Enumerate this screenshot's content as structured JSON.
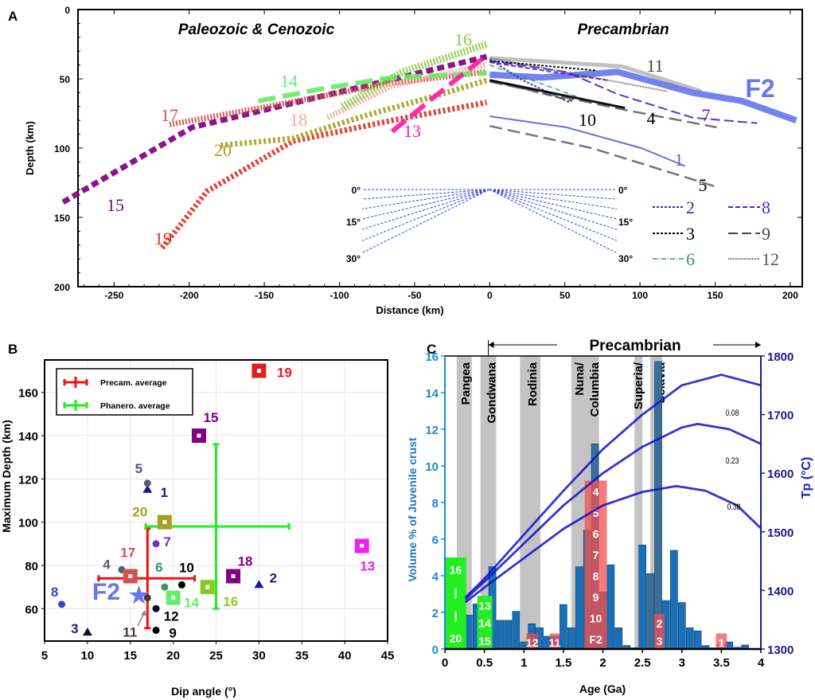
{
  "chart_data": [
    {
      "panel": "A",
      "type": "line",
      "xlabel": "Distance (km)",
      "ylabel": "Depth (km)",
      "xlim": [
        -274,
        208
      ],
      "ylim": [
        200,
        0
      ],
      "xticks": [
        -250,
        -200,
        -150,
        -100,
        -50,
        0,
        50,
        100,
        150,
        200
      ],
      "yticks": [
        0,
        50,
        100,
        150,
        200
      ],
      "region_labels": {
        "left": "Paleozoic & Cenozoic",
        "right": "Precambrian"
      },
      "angle_labels": [
        "0°",
        "15°",
        "30°"
      ],
      "series": [
        {
          "name": "15",
          "color": "#800080",
          "style": "thick-dashed",
          "points": [
            [
              -284,
              139
            ],
            [
              -198,
              85
            ],
            [
              -98,
              59
            ],
            [
              -2,
              34
            ]
          ]
        },
        {
          "name": "19",
          "color": "#e03020",
          "style": "thick-dotted",
          "points": [
            [
              -218,
              172
            ],
            [
              -188,
              131
            ],
            [
              -131,
              95
            ],
            [
              -65,
              80
            ],
            [
              -2,
              67
            ]
          ]
        },
        {
          "name": "20",
          "color": "#a8a020",
          "style": "thick-dotted",
          "points": [
            [
              -179,
              98
            ],
            [
              -131,
              93
            ],
            [
              -81,
              76
            ],
            [
              -32,
              61
            ],
            [
              -2,
              51
            ]
          ]
        },
        {
          "name": "17",
          "color": "#d05050",
          "style": "hatched",
          "points": [
            [
              -213,
              83
            ],
            [
              -148,
              70
            ],
            [
              -65,
              53
            ],
            [
              -2,
              45
            ]
          ]
        },
        {
          "name": "18",
          "color": "#f4a898",
          "style": "hatched",
          "points": [
            [
              -108,
              78
            ],
            [
              -65,
              55
            ],
            [
              -2,
              40
            ]
          ]
        },
        {
          "name": "16",
          "color": "#8acb4a",
          "style": "hatched-wide",
          "points": [
            [
              -98,
              70
            ],
            [
              -58,
              45
            ],
            [
              -2,
              25
            ]
          ]
        },
        {
          "name": "14",
          "color": "#66ee66",
          "style": "long-dashed",
          "points": [
            [
              -154,
              66
            ],
            [
              -111,
              57
            ],
            [
              -65,
              49
            ],
            [
              -2,
              46
            ]
          ]
        },
        {
          "name": "13",
          "color": "#ff1aa8",
          "style": "long-dashed",
          "points": [
            [
              -65,
              88
            ],
            [
              -38,
              64
            ],
            [
              -2,
              33
            ]
          ]
        },
        {
          "name": "11",
          "color": "#bbbbbb",
          "style": "solid-thick",
          "points": [
            [
              0,
              35
            ],
            [
              88,
              41
            ],
            [
              141,
              59
            ]
          ]
        },
        {
          "name": "F2",
          "color": "#6677ee",
          "style": "solid-heavy",
          "points": [
            [
              0,
              47
            ],
            [
              35,
              49
            ],
            [
              85,
              45
            ],
            [
              135,
              60
            ],
            [
              168,
              66
            ],
            [
              204,
              80
            ]
          ]
        },
        {
          "name": "7",
          "color": "#5522cc",
          "style": "dashed",
          "points": [
            [
              0,
              37
            ],
            [
              51,
              45
            ],
            [
              85,
              61
            ],
            [
              135,
              78
            ],
            [
              178,
              82
            ]
          ]
        },
        {
          "name": "8",
          "color": "#5522cc",
          "style": "short-dashed",
          "points": [
            [
              0,
              38
            ],
            [
              78,
              51
            ]
          ]
        },
        {
          "name": "12",
          "color": "#555555",
          "style": "fine-dotted",
          "points": [
            [
              0,
              35
            ],
            [
              118,
              59
            ]
          ]
        },
        {
          "name": "3",
          "color": "#000000",
          "style": "dotted",
          "points": [
            [
              0,
              37
            ],
            [
              71,
              44
            ]
          ]
        },
        {
          "name": "2",
          "color": "#333399",
          "style": "dotted",
          "points": [
            [
              0,
              36
            ],
            [
              22,
              51
            ],
            [
              53,
              67
            ]
          ]
        },
        {
          "name": "6",
          "color": "#339966",
          "style": "dash-dot",
          "points": [
            [
              0,
              40
            ],
            [
              61,
              64
            ]
          ]
        },
        {
          "name": "9",
          "color": "#444455",
          "style": "dashed",
          "points": [
            [
              0,
              51
            ],
            [
              55,
              66
            ]
          ]
        },
        {
          "name": "4",
          "color": "#666677",
          "style": "long-dashed-thin",
          "points": [
            [
              0,
              52
            ],
            [
              88,
              72
            ],
            [
              151,
              85
            ]
          ]
        },
        {
          "name": "10",
          "color": "#000000",
          "style": "solid",
          "points": [
            [
              0,
              51
            ],
            [
              90,
              71
            ]
          ]
        },
        {
          "name": "1",
          "color": "#5566dd",
          "style": "solid-thin",
          "points": [
            [
              0,
              77
            ],
            [
              51,
              85
            ],
            [
              101,
              100
            ],
            [
              130,
              113
            ]
          ]
        },
        {
          "name": "5",
          "color": "#666677",
          "style": "long-dashed-thin",
          "points": [
            [
              0,
              84
            ],
            [
              68,
              100
            ],
            [
              151,
              128
            ]
          ]
        }
      ],
      "legend": [
        "2",
        "8",
        "3",
        "9",
        "6",
        "12"
      ]
    },
    {
      "panel": "B",
      "type": "scatter",
      "xlabel": "Dip angle (°)",
      "ylabel": "Maximum Depth (km)",
      "xlim": [
        5,
        45
      ],
      "ylim": [
        45,
        175
      ],
      "xticks": [
        5,
        10,
        15,
        20,
        25,
        30,
        35,
        40,
        45
      ],
      "yticks": [
        60,
        80,
        100,
        120,
        140,
        160
      ],
      "grid": true,
      "legend_position": "top-left",
      "points": [
        {
          "name": "1",
          "dip": 17,
          "depth": 115,
          "marker": "triangle",
          "color": "#1a1a8c"
        },
        {
          "name": "2",
          "dip": 30,
          "depth": 71,
          "marker": "triangle",
          "color": "#1a1a8c"
        },
        {
          "name": "3",
          "dip": 10,
          "depth": 49,
          "marker": "triangle",
          "color": "#111133"
        },
        {
          "name": "4",
          "dip": 14,
          "depth": 78,
          "marker": "circle",
          "color": "#5a5a7a"
        },
        {
          "name": "5",
          "dip": 17,
          "depth": 118,
          "marker": "circle",
          "color": "#5a5a7a"
        },
        {
          "name": "6",
          "dip": 19,
          "depth": 70,
          "marker": "circle",
          "color": "#339966"
        },
        {
          "name": "7",
          "dip": 18,
          "depth": 90,
          "marker": "circle",
          "color": "#6633cc"
        },
        {
          "name": "8",
          "dip": 7,
          "depth": 62,
          "marker": "circle",
          "color": "#3344cc"
        },
        {
          "name": "9",
          "dip": 18,
          "depth": 50,
          "marker": "circle",
          "color": "#000000"
        },
        {
          "name": "10",
          "dip": 21,
          "depth": 71,
          "marker": "circle",
          "color": "#000000"
        },
        {
          "name": "11",
          "dip": 17,
          "depth": 65,
          "marker": "circle",
          "color": "#443a3a"
        },
        {
          "name": "12",
          "dip": 18,
          "depth": 60,
          "marker": "circle",
          "color": "#0a0a30"
        },
        {
          "name": "13",
          "dip": 42,
          "depth": 89,
          "marker": "square",
          "color": "#ee22ee"
        },
        {
          "name": "14",
          "dip": 20,
          "depth": 65,
          "marker": "square",
          "color": "#66ee66"
        },
        {
          "name": "15",
          "dip": 23,
          "depth": 140,
          "marker": "square",
          "color": "#800080"
        },
        {
          "name": "16",
          "dip": 24,
          "depth": 70,
          "marker": "square",
          "color": "#88cc22"
        },
        {
          "name": "17",
          "dip": 15,
          "depth": 75,
          "marker": "square",
          "color": "#d65050"
        },
        {
          "name": "18",
          "dip": 27,
          "depth": 75,
          "marker": "square",
          "color": "#800080"
        },
        {
          "name": "19",
          "dip": 30,
          "depth": 170,
          "marker": "square",
          "color": "#e02020"
        },
        {
          "name": "20",
          "dip": 19,
          "depth": 100,
          "marker": "square",
          "color": "#a8a020"
        },
        {
          "name": "F2",
          "dip": 16,
          "depth": 66,
          "marker": "star",
          "color": "#6677ee"
        }
      ],
      "averages": [
        {
          "name": "Precam. average",
          "color": "#ee1111",
          "dip": 17,
          "depth": 74,
          "dip_range": [
            11.3,
            22.5
          ],
          "depth_range": [
            51,
            97
          ]
        },
        {
          "name": "Phanero. average",
          "color": "#22ee22",
          "dip": 25,
          "depth": 98,
          "dip_range": [
            16.8,
            33.5
          ],
          "depth_range": [
            60,
            136
          ]
        }
      ]
    },
    {
      "panel": "C",
      "type": "bar",
      "xlabel": "Age (Ga)",
      "ylabel": "Volume % of Juvenile crust",
      "y2label": "Tp (°C)",
      "xlim": [
        0,
        4
      ],
      "ylim": [
        0,
        16
      ],
      "y2lim": [
        1300,
        1800
      ],
      "xticks": [
        0,
        0.5,
        1,
        1.5,
        2,
        2.5,
        3,
        3.5,
        4
      ],
      "yticks": [
        0,
        2,
        4,
        6,
        8,
        10,
        12,
        14,
        16
      ],
      "y2ticks": [
        1300,
        1400,
        1500,
        1600,
        1700,
        1800
      ],
      "era_label": "Precambrian",
      "era_range": [
        0.55,
        4
      ],
      "supercontinents": [
        {
          "name": "Pangea",
          "range": [
            0.15,
            0.34
          ]
        },
        {
          "name": "Gondwana",
          "range": [
            0.45,
            0.65
          ]
        },
        {
          "name": "Rodinia",
          "range": [
            0.95,
            1.21
          ]
        },
        {
          "name": "Nuna/ Columbia",
          "range": [
            1.6,
            1.95
          ]
        },
        {
          "name": "Superia/",
          "range": [
            2.4,
            2.5
          ]
        },
        {
          "name": "Sclavia",
          "range": [
            2.6,
            2.75
          ]
        }
      ],
      "bars": {
        "age": [
          0.3,
          0.4,
          0.6,
          0.7,
          0.8,
          0.9,
          1.0,
          1.1,
          1.2,
          1.3,
          1.4,
          1.5,
          1.6,
          1.7,
          1.8,
          1.9,
          2.0,
          2.1,
          2.2,
          2.3,
          2.4,
          2.5,
          2.6,
          2.7,
          2.8,
          2.9,
          3.0,
          3.1,
          3.2,
          3.3,
          3.4,
          3.5,
          3.6,
          3.7,
          3.8
        ],
        "values": [
          1.85,
          2.46,
          4.5,
          1.57,
          1.57,
          2.06,
          0.39,
          1.38,
          1.16,
          0.7,
          0.7,
          2.43,
          1.16,
          4.49,
          6.48,
          11.2,
          3.12,
          4.6,
          1.16,
          0.19,
          0.07,
          5.68,
          4.12,
          15.7,
          2.65,
          5.39,
          2.54,
          1.16,
          0.99,
          0.19,
          0.07,
          0.22,
          0.39,
          0.1,
          0.22
        ]
      },
      "case_boxes": [
        {
          "group": "Phanerozoic",
          "color": "#22ee22",
          "range": [
            0,
            0.27
          ],
          "value": 5.0,
          "labels": [
            "16",
            "|",
            "|",
            "20"
          ]
        },
        {
          "group": "Phanerozoic",
          "color": "#22ee22",
          "range": [
            0.41,
            0.6
          ],
          "value": 2.9,
          "labels": [
            "13",
            "14",
            "15"
          ]
        },
        {
          "group": "Precambrian",
          "color": "#f05050",
          "range": [
            1.03,
            1.18
          ],
          "value": 0.85,
          "labels": [
            "12"
          ]
        },
        {
          "group": "Precambrian",
          "color": "#f05050",
          "range": [
            1.33,
            1.45
          ],
          "value": 0.85,
          "labels": [
            "11"
          ]
        },
        {
          "group": "Precambrian",
          "color": "#f05050",
          "range": [
            1.77,
            2.05
          ],
          "value": 9.2,
          "labels": [
            "4",
            "5",
            "6",
            "7",
            "8",
            "9",
            "10",
            "F2"
          ]
        },
        {
          "group": "Precambrian",
          "color": "#f05050",
          "range": [
            2.65,
            2.78
          ],
          "value": 1.9,
          "labels": [
            "2",
            "3"
          ]
        },
        {
          "group": "Precambrian",
          "color": "#f05050",
          "range": [
            3.43,
            3.57
          ],
          "value": 0.85,
          "labels": [
            "1"
          ]
        }
      ],
      "tp_curves": [
        {
          "name": "0.08",
          "color": "#1111cc",
          "points": [
            [
              0.26,
              1388
            ],
            [
              0.5,
              1420
            ],
            [
              1,
              1495
            ],
            [
              1.5,
              1570
            ],
            [
              2,
              1641
            ],
            [
              2.5,
              1700
            ],
            [
              3,
              1750
            ],
            [
              3.5,
              1768
            ],
            [
              4,
              1750
            ]
          ]
        },
        {
          "name": "0.23",
          "color": "#1111cc",
          "points": [
            [
              0.26,
              1385
            ],
            [
              0.5,
              1415
            ],
            [
              1,
              1480
            ],
            [
              1.5,
              1545
            ],
            [
              2,
              1600
            ],
            [
              2.5,
              1645
            ],
            [
              3,
              1678
            ],
            [
              3.2,
              1684
            ],
            [
              3.6,
              1675
            ],
            [
              4,
              1650
            ]
          ]
        },
        {
          "name": "0.38",
          "color": "#1111cc",
          "points": [
            [
              0.26,
              1380
            ],
            [
              0.5,
              1405
            ],
            [
              1,
              1455
            ],
            [
              1.5,
              1505
            ],
            [
              2,
              1545
            ],
            [
              2.5,
              1568
            ],
            [
              2.93,
              1578
            ],
            [
              3.3,
              1570
            ],
            [
              3.7,
              1545
            ],
            [
              4,
              1506
            ]
          ]
        }
      ]
    }
  ],
  "panel_letters": [
    "A",
    "B",
    "C"
  ]
}
